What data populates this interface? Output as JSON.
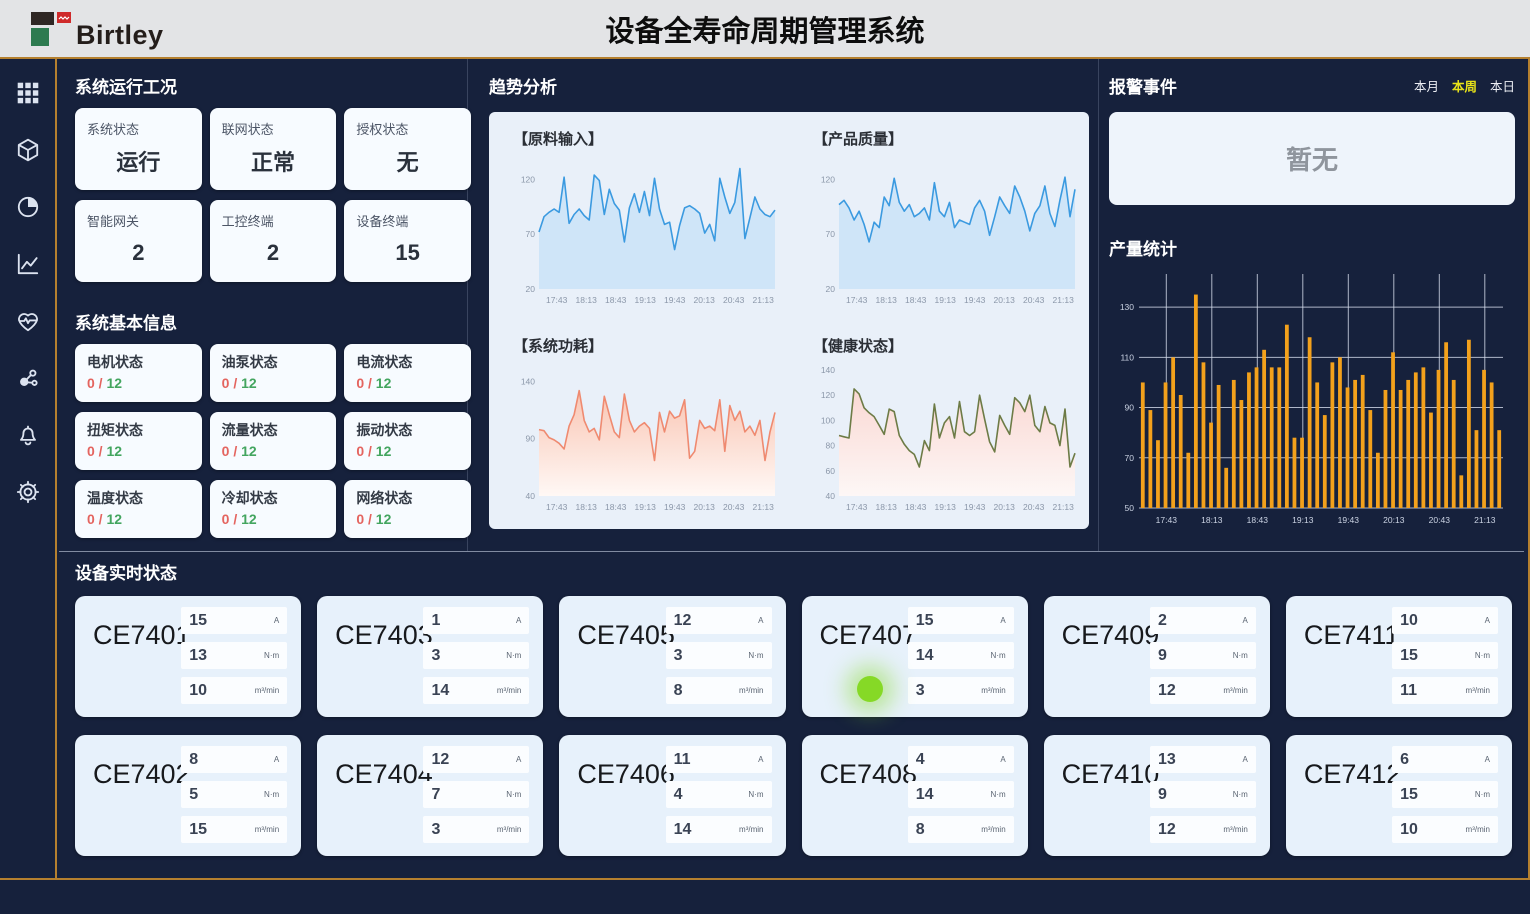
{
  "header": {
    "logo_text": "Birtley",
    "title": "设备全寿命周期管理系统"
  },
  "sidebar": {
    "icons": [
      "apps-grid",
      "cube",
      "pie-chart",
      "trend-line",
      "health",
      "molecule",
      "notifications-bell",
      "settings-gear"
    ]
  },
  "system_status": {
    "title": "系统运行工况",
    "cards": [
      {
        "label": "系统状态",
        "value": "运行"
      },
      {
        "label": "联网状态",
        "value": "正常"
      },
      {
        "label": "授权状态",
        "value": "无"
      },
      {
        "label": "智能网关",
        "value": "2"
      },
      {
        "label": "工控终端",
        "value": "2"
      },
      {
        "label": "设备终端",
        "value": "15"
      }
    ]
  },
  "basic_info": {
    "title": "系统基本信息",
    "cards": [
      {
        "label": "电机状态",
        "alarm": "0",
        "total": "12"
      },
      {
        "label": "油泵状态",
        "alarm": "0",
        "total": "12"
      },
      {
        "label": "电流状态",
        "alarm": "0",
        "total": "12"
      },
      {
        "label": "扭矩状态",
        "alarm": "0",
        "total": "12"
      },
      {
        "label": "流量状态",
        "alarm": "0",
        "total": "12"
      },
      {
        "label": "振动状态",
        "alarm": "0",
        "total": "12"
      },
      {
        "label": "温度状态",
        "alarm": "0",
        "total": "12"
      },
      {
        "label": "冷却状态",
        "alarm": "0",
        "total": "12"
      },
      {
        "label": "网络状态",
        "alarm": "0",
        "total": "12"
      }
    ]
  },
  "trend": {
    "title": "趋势分析"
  },
  "alarm": {
    "title": "报警事件",
    "tabs": [
      {
        "label": "本月",
        "active": false
      },
      {
        "label": "本周",
        "active": true
      },
      {
        "label": "本日",
        "active": false
      }
    ],
    "empty_text": "暂无"
  },
  "output": {
    "title": "产量统计"
  },
  "devices": {
    "title": "设备实时状态",
    "units": [
      "A",
      "N·m",
      "m³/min"
    ],
    "cards": [
      {
        "name": "CE7401",
        "values": [
          "15",
          "13",
          "10"
        ]
      },
      {
        "name": "CE7403",
        "values": [
          "1",
          "3",
          "14"
        ]
      },
      {
        "name": "CE7405",
        "values": [
          "12",
          "3",
          "8"
        ]
      },
      {
        "name": "CE7407",
        "values": [
          "15",
          "14",
          "3"
        ],
        "indicator": true
      },
      {
        "name": "CE7409",
        "values": [
          "2",
          "9",
          "12"
        ]
      },
      {
        "name": "CE7411",
        "values": [
          "10",
          "15",
          "11"
        ]
      },
      {
        "name": "CE7402",
        "values": [
          "8",
          "5",
          "15"
        ]
      },
      {
        "name": "CE7404",
        "values": [
          "12",
          "7",
          "3"
        ]
      },
      {
        "name": "CE7406",
        "values": [
          "11",
          "4",
          "14"
        ]
      },
      {
        "name": "CE7408",
        "values": [
          "4",
          "14",
          "8"
        ]
      },
      {
        "name": "CE7410",
        "values": [
          "13",
          "9",
          "12"
        ]
      },
      {
        "name": "CE7412",
        "values": [
          "6",
          "15",
          "10"
        ]
      }
    ]
  },
  "colors": {
    "accent_gold": "#b5802f",
    "bar_orange": "#f3a11c",
    "alarm_red": "#e4645f",
    "ok_green": "#43a55f",
    "active_tab_yellow": "#e8e319",
    "indicator_green": "#86d926",
    "line_blue": "#3b9ae0",
    "line_salmon": "#ef8a70",
    "line_olive": "#6d7b46"
  },
  "chart_data": [
    {
      "slot": "trend-1",
      "type": "line",
      "title": "【原料输入】",
      "color": "#3b9ae0",
      "fill": "#cfe5f8",
      "ylim": [
        20,
        135
      ],
      "y_ticks": [
        120,
        70,
        20
      ],
      "x_labels": [
        "17:43",
        "18:13",
        "18:43",
        "19:13",
        "19:43",
        "20:13",
        "20:43",
        "21:13"
      ],
      "values": [
        72,
        86,
        90,
        93,
        90,
        122,
        80,
        88,
        93,
        87,
        83,
        124,
        119,
        88,
        111,
        98,
        92,
        63,
        94,
        107,
        90,
        109,
        87,
        121,
        93,
        79,
        81,
        56,
        78,
        94,
        96,
        93,
        89,
        71,
        79,
        64,
        121,
        104,
        89,
        99,
        130,
        66,
        85,
        104,
        93,
        88,
        86,
        92
      ]
    },
    {
      "slot": "trend-2",
      "type": "line",
      "title": "【产品质量】",
      "color": "#3b9ae0",
      "fill": "#cfe5f8",
      "ylim": [
        20,
        135
      ],
      "y_ticks": [
        120,
        70,
        20
      ],
      "x_labels": [
        "17:43",
        "18:13",
        "18:43",
        "19:13",
        "19:43",
        "20:13",
        "20:43",
        "21:13"
      ],
      "values": [
        97,
        101,
        94,
        83,
        91,
        79,
        63,
        81,
        76,
        104,
        96,
        121,
        99,
        91,
        97,
        86,
        89,
        94,
        83,
        117,
        91,
        86,
        99,
        76,
        83,
        81,
        79,
        94,
        101,
        91,
        69,
        86,
        104,
        96,
        89,
        114,
        104,
        91,
        73,
        89,
        96,
        114,
        89,
        77,
        101,
        122,
        86,
        111
      ]
    },
    {
      "slot": "trend-3",
      "type": "line",
      "title": "【系统功耗】",
      "color": "#ef8a70",
      "fill_gradient": [
        "#f9c5b3",
        "#fff8f5"
      ],
      "ylim": [
        40,
        150
      ],
      "y_ticks": [
        140,
        90,
        40
      ],
      "x_labels": [
        "17:43",
        "18:13",
        "18:43",
        "19:13",
        "19:43",
        "20:13",
        "20:43",
        "21:13"
      ],
      "values": [
        98,
        97,
        91,
        89,
        86,
        81,
        101,
        111,
        132,
        106,
        96,
        99,
        89,
        127,
        111,
        96,
        91,
        129,
        106,
        96,
        101,
        104,
        99,
        71,
        113,
        96,
        114,
        108,
        110,
        124,
        73,
        79,
        106,
        99,
        101,
        97,
        124,
        79,
        119,
        106,
        114,
        96,
        101,
        93,
        106,
        71,
        96,
        113
      ]
    },
    {
      "slot": "trend-4",
      "type": "line",
      "title": "【健康状态】",
      "color": "#6d7b46",
      "fill_gradient": [
        "#fad8d3",
        "#fdf7f6"
      ],
      "ylim": [
        40,
        140
      ],
      "y_ticks": [
        140,
        120,
        100,
        80,
        60,
        40
      ],
      "x_labels": [
        "17:43",
        "18:13",
        "18:43",
        "19:13",
        "19:43",
        "20:13",
        "20:43",
        "21:13"
      ],
      "values": [
        88,
        87,
        86,
        125,
        121,
        110,
        106,
        103,
        96,
        89,
        109,
        107,
        88,
        81,
        76,
        73,
        63,
        84,
        76,
        113,
        86,
        98,
        103,
        86,
        115,
        91,
        88,
        91,
        120,
        101,
        83,
        75,
        104,
        96,
        89,
        118,
        114,
        107,
        120,
        96,
        91,
        111,
        98,
        96,
        80,
        109,
        63,
        74
      ]
    },
    {
      "slot": "bar-chart",
      "type": "bar",
      "title": "产量统计",
      "color": "#f3a11c",
      "ylim": [
        50,
        140
      ],
      "y_ticks": [
        130,
        110,
        90,
        70,
        50
      ],
      "x_labels": [
        "17:43",
        "18:13",
        "18:43",
        "19:13",
        "19:43",
        "20:13",
        "20:43",
        "21:13"
      ],
      "values": [
        100,
        89,
        77,
        100,
        110,
        95,
        72,
        135,
        108,
        84,
        99,
        66,
        101,
        93,
        104,
        106,
        113,
        106,
        106,
        123,
        78,
        78,
        118,
        100,
        87,
        108,
        110,
        98,
        101,
        103,
        89,
        72,
        97,
        112,
        97,
        101,
        104,
        106,
        88,
        105,
        116,
        101,
        63,
        117,
        81,
        105,
        100,
        81
      ]
    }
  ]
}
